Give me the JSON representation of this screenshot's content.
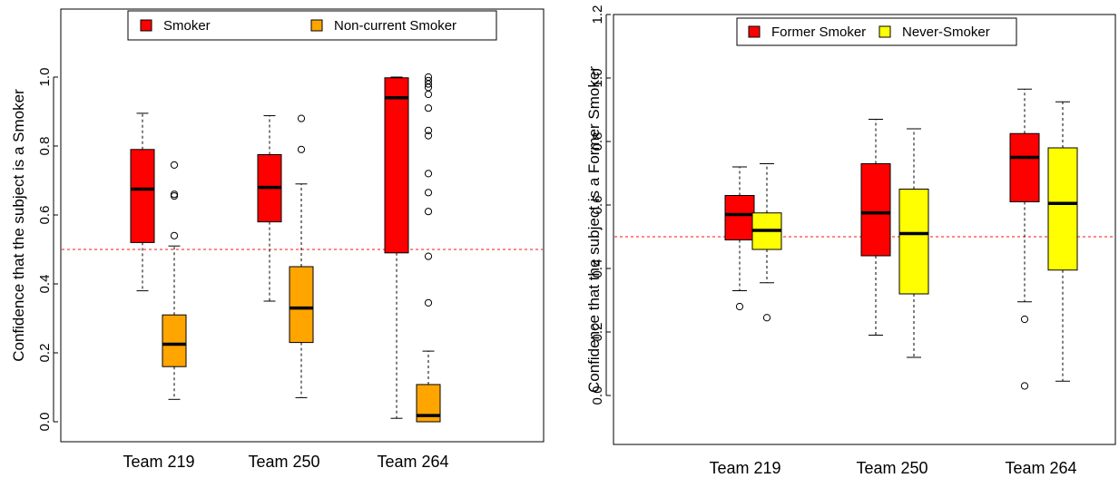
{
  "chart_data": [
    {
      "type": "boxplot",
      "title": "",
      "xlabel": "",
      "ylabel": "Confidence that the subject is a Smoker",
      "ylim": [
        -0.03,
        1.2
      ],
      "yticks": [
        0.0,
        0.2,
        0.4,
        0.6,
        0.8,
        1.0
      ],
      "ytick_labels": [
        "0.0",
        "0.2",
        "0.4",
        "0.6",
        "0.8",
        "1.0"
      ],
      "categories": [
        "Team 219",
        "Team 250",
        "Team 264"
      ],
      "reference_line": 0.5,
      "legend_position": "top",
      "series": [
        {
          "name": "Smoker",
          "color": "#ff0000",
          "boxes": [
            {
              "whisker_low": 0.38,
              "q1": 0.52,
              "median": 0.675,
              "q3": 0.79,
              "whisker_high": 0.895,
              "outliers": []
            },
            {
              "whisker_low": 0.35,
              "q1": 0.58,
              "median": 0.68,
              "q3": 0.775,
              "whisker_high": 0.888,
              "outliers": []
            },
            {
              "whisker_low": 0.01,
              "q1": 0.49,
              "median": 0.94,
              "q3": 0.998,
              "whisker_high": 1.0,
              "outliers": []
            }
          ]
        },
        {
          "name": "Non-current Smoker",
          "color": "#ffa500",
          "boxes": [
            {
              "whisker_low": 0.065,
              "q1": 0.16,
              "median": 0.225,
              "q3": 0.31,
              "whisker_high": 0.51,
              "outliers": [
                0.54,
                0.655,
                0.66,
                0.745
              ]
            },
            {
              "whisker_low": 0.07,
              "q1": 0.23,
              "median": 0.33,
              "q3": 0.45,
              "whisker_high": 0.69,
              "outliers": [
                0.79,
                0.88
              ]
            },
            {
              "whisker_low": 0.0,
              "q1": 0.0,
              "median": 0.018,
              "q3": 0.108,
              "whisker_high": 0.205,
              "outliers": [
                0.345,
                0.48,
                0.61,
                0.665,
                0.72,
                0.83,
                0.845,
                0.91,
                0.95,
                0.97,
                0.98,
                0.99,
                1.0
              ]
            }
          ]
        }
      ]
    },
    {
      "type": "boxplot",
      "title": "",
      "xlabel": "",
      "ylabel": "Confidence that the subject is a Former Smoker",
      "ylim": [
        -0.15,
        1.2
      ],
      "yticks": [
        0.0,
        0.2,
        0.4,
        0.6,
        0.8,
        1.0,
        1.2
      ],
      "ytick_labels": [
        "0.0",
        "0.2",
        "0.4",
        "0.6",
        "0.8",
        "1.0",
        "1.2"
      ],
      "categories": [
        "Team 219",
        "Team 250",
        "Team 264"
      ],
      "reference_line": 0.5,
      "legend_position": "top",
      "series": [
        {
          "name": "Former Smoker",
          "color": "#ff0000",
          "boxes": [
            {
              "whisker_low": 0.33,
              "q1": 0.49,
              "median": 0.57,
              "q3": 0.63,
              "whisker_high": 0.72,
              "outliers": [
                0.28
              ]
            },
            {
              "whisker_low": 0.19,
              "q1": 0.44,
              "median": 0.575,
              "q3": 0.73,
              "whisker_high": 0.87,
              "outliers": []
            },
            {
              "whisker_low": 0.295,
              "q1": 0.61,
              "median": 0.75,
              "q3": 0.825,
              "whisker_high": 0.965,
              "outliers": [
                0.24,
                0.03
              ]
            }
          ]
        },
        {
          "name": "Never-Smoker",
          "color": "#ffff00",
          "boxes": [
            {
              "whisker_low": 0.355,
              "q1": 0.46,
              "median": 0.52,
              "q3": 0.575,
              "whisker_high": 0.73,
              "outliers": [
                0.245
              ]
            },
            {
              "whisker_low": 0.12,
              "q1": 0.32,
              "median": 0.51,
              "q3": 0.65,
              "whisker_high": 0.84,
              "outliers": []
            },
            {
              "whisker_low": 0.045,
              "q1": 0.395,
              "median": 0.605,
              "q3": 0.78,
              "whisker_high": 0.925,
              "outliers": []
            }
          ]
        }
      ]
    }
  ]
}
